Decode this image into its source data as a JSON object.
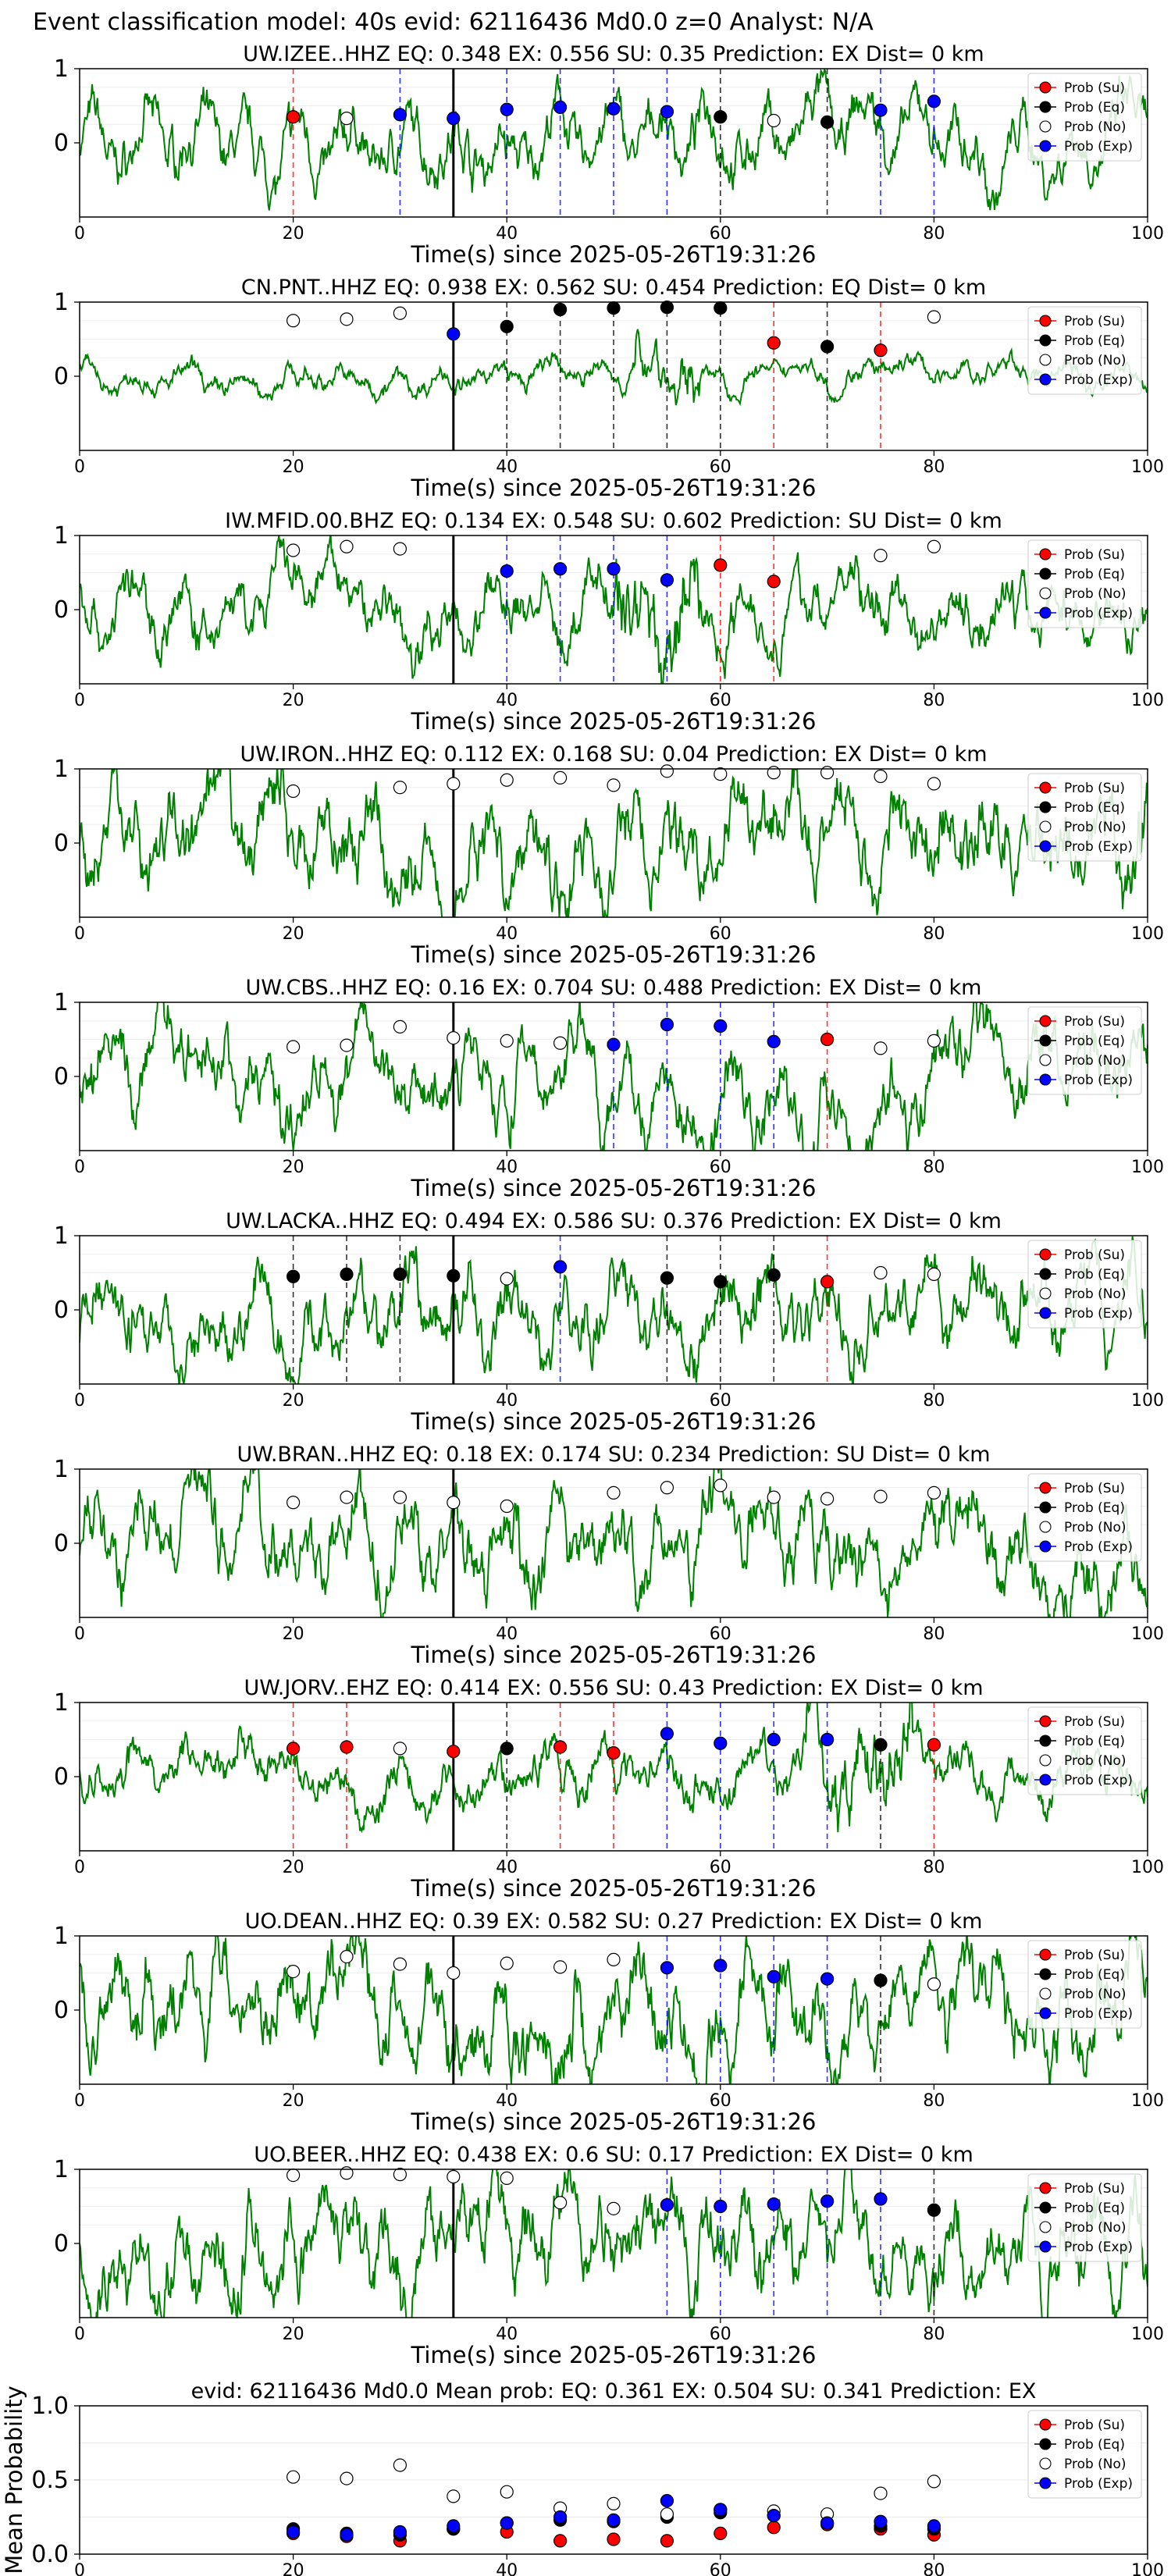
{
  "figure": {
    "suptitle": "Event classification model: 40s evid: 62116436 Md0.0 z=0 Analyst: N/A",
    "xlabel": "Time(s) since 2025-05-26T19:31:26",
    "legend_labels": [
      "Prob (Su)",
      "Prob (Eq)",
      "Prob (No)",
      "Prob (Exp)"
    ],
    "colors": {
      "su": "#ff0000",
      "eq": "#000000",
      "no": "#ffffff",
      "exp": "#0000ff",
      "waveform": "#008000"
    }
  },
  "chart_data": [
    {
      "type": "line",
      "title": "UW.IZEE..HHZ   EQ: 0.348  EX: 0.556  SU: 0.35   Prediction: EX    Dist= 0 km",
      "xlim": [
        0,
        100
      ],
      "ylim": [
        -1,
        1
      ],
      "yticks": [
        0,
        1
      ],
      "xticks": [
        0,
        20,
        40,
        60,
        80,
        100
      ],
      "pick_time": 35,
      "series": [
        {
          "name": "Prob (Su)",
          "x": [
            20
          ],
          "y": [
            0.35
          ]
        },
        {
          "name": "Prob (Eq)",
          "x": [
            60,
            70
          ],
          "y": [
            0.35,
            0.28
          ]
        },
        {
          "name": "Prob (No)",
          "x": [
            25,
            65
          ],
          "y": [
            0.33,
            0.3
          ]
        },
        {
          "name": "Prob (Exp)",
          "x": [
            30,
            35,
            40,
            45,
            50,
            55,
            75,
            80
          ],
          "y": [
            0.38,
            0.33,
            0.45,
            0.48,
            0.46,
            0.42,
            0.44,
            0.56
          ]
        }
      ],
      "vlines": [
        {
          "x": 20,
          "color": "su"
        },
        {
          "x": 30,
          "color": "exp"
        },
        {
          "x": 40,
          "color": "exp"
        },
        {
          "x": 45,
          "color": "exp"
        },
        {
          "x": 50,
          "color": "exp"
        },
        {
          "x": 55,
          "color": "exp"
        },
        {
          "x": 60,
          "color": "eq"
        },
        {
          "x": 70,
          "color": "eq"
        },
        {
          "x": 75,
          "color": "exp"
        },
        {
          "x": 80,
          "color": "exp"
        }
      ]
    },
    {
      "type": "line",
      "title": "CN.PNT..HHZ   EQ: 0.938  EX: 0.562  SU: 0.454   Prediction: EQ    Dist= 0 km",
      "xlim": [
        0,
        100
      ],
      "ylim": [
        -1,
        1
      ],
      "yticks": [
        0,
        1
      ],
      "xticks": [
        0,
        20,
        40,
        60,
        80,
        100
      ],
      "pick_time": 35,
      "series": [
        {
          "name": "Prob (Su)",
          "x": [
            65,
            75
          ],
          "y": [
            0.45,
            0.35
          ]
        },
        {
          "name": "Prob (Eq)",
          "x": [
            40,
            45,
            50,
            55,
            60,
            70
          ],
          "y": [
            0.67,
            0.9,
            0.92,
            0.93,
            0.92,
            0.4
          ]
        },
        {
          "name": "Prob (No)",
          "x": [
            20,
            25,
            30,
            80
          ],
          "y": [
            0.75,
            0.77,
            0.85,
            0.8
          ]
        },
        {
          "name": "Prob (Exp)",
          "x": [
            35
          ],
          "y": [
            0.57
          ]
        }
      ],
      "vlines": [
        {
          "x": 40,
          "color": "eq"
        },
        {
          "x": 45,
          "color": "eq"
        },
        {
          "x": 50,
          "color": "eq"
        },
        {
          "x": 55,
          "color": "eq"
        },
        {
          "x": 60,
          "color": "eq"
        },
        {
          "x": 65,
          "color": "su"
        },
        {
          "x": 70,
          "color": "eq"
        },
        {
          "x": 75,
          "color": "su"
        }
      ]
    },
    {
      "type": "line",
      "title": "IW.MFID.00.BHZ   EQ: 0.134  EX: 0.548  SU: 0.602   Prediction: SU    Dist= 0 km",
      "xlim": [
        0,
        100
      ],
      "ylim": [
        -1,
        1
      ],
      "yticks": [
        0,
        1
      ],
      "xticks": [
        0,
        20,
        40,
        60,
        80,
        100
      ],
      "pick_time": 35,
      "series": [
        {
          "name": "Prob (Su)",
          "x": [
            60,
            65
          ],
          "y": [
            0.6,
            0.38
          ]
        },
        {
          "name": "Prob (Eq)",
          "x": [],
          "y": []
        },
        {
          "name": "Prob (No)",
          "x": [
            20,
            25,
            30,
            75,
            80
          ],
          "y": [
            0.8,
            0.85,
            0.82,
            0.73,
            0.85
          ]
        },
        {
          "name": "Prob (Exp)",
          "x": [
            40,
            45,
            50,
            55
          ],
          "y": [
            0.52,
            0.55,
            0.55,
            0.4
          ]
        }
      ],
      "vlines": [
        {
          "x": 40,
          "color": "exp"
        },
        {
          "x": 45,
          "color": "exp"
        },
        {
          "x": 50,
          "color": "exp"
        },
        {
          "x": 55,
          "color": "exp"
        },
        {
          "x": 60,
          "color": "su"
        },
        {
          "x": 65,
          "color": "su"
        }
      ]
    },
    {
      "type": "line",
      "title": "UW.IRON..HHZ   EQ: 0.112  EX: 0.168  SU: 0.04   Prediction: EX    Dist= 0 km",
      "xlim": [
        0,
        100
      ],
      "ylim": [
        -1,
        1
      ],
      "yticks": [
        0,
        1
      ],
      "xticks": [
        0,
        20,
        40,
        60,
        80,
        100
      ],
      "pick_time": 35,
      "series": [
        {
          "name": "Prob (Su)",
          "x": [],
          "y": []
        },
        {
          "name": "Prob (Eq)",
          "x": [],
          "y": []
        },
        {
          "name": "Prob (No)",
          "x": [
            20,
            30,
            35,
            40,
            45,
            50,
            55,
            60,
            65,
            70,
            75,
            80
          ],
          "y": [
            0.7,
            0.75,
            0.8,
            0.85,
            0.88,
            0.78,
            0.97,
            0.93,
            0.95,
            0.95,
            0.9,
            0.8
          ]
        },
        {
          "name": "Prob (Exp)",
          "x": [],
          "y": []
        }
      ],
      "vlines": []
    },
    {
      "type": "line",
      "title": "UW.CBS..HHZ   EQ: 0.16  EX: 0.704  SU: 0.488   Prediction: EX    Dist= 0 km",
      "xlim": [
        0,
        100
      ],
      "ylim": [
        -1,
        1
      ],
      "yticks": [
        0,
        1
      ],
      "xticks": [
        0,
        20,
        40,
        60,
        80,
        100
      ],
      "pick_time": 35,
      "series": [
        {
          "name": "Prob (Su)",
          "x": [
            70
          ],
          "y": [
            0.5
          ]
        },
        {
          "name": "Prob (Eq)",
          "x": [],
          "y": []
        },
        {
          "name": "Prob (No)",
          "x": [
            20,
            25,
            30,
            35,
            40,
            45,
            75,
            80
          ],
          "y": [
            0.4,
            0.42,
            0.67,
            0.52,
            0.48,
            0.45,
            0.38,
            0.48
          ]
        },
        {
          "name": "Prob (Exp)",
          "x": [
            50,
            55,
            60,
            65
          ],
          "y": [
            0.43,
            0.7,
            0.68,
            0.47
          ]
        }
      ],
      "vlines": [
        {
          "x": 50,
          "color": "exp"
        },
        {
          "x": 55,
          "color": "exp"
        },
        {
          "x": 60,
          "color": "exp"
        },
        {
          "x": 65,
          "color": "exp"
        },
        {
          "x": 70,
          "color": "su"
        }
      ]
    },
    {
      "type": "line",
      "title": "UW.LACKA..HHZ   EQ: 0.494  EX: 0.586  SU: 0.376   Prediction: EX    Dist= 0 km",
      "xlim": [
        0,
        100
      ],
      "ylim": [
        -1,
        1
      ],
      "yticks": [
        0,
        1
      ],
      "xticks": [
        0,
        20,
        40,
        60,
        80,
        100
      ],
      "pick_time": 35,
      "series": [
        {
          "name": "Prob (Su)",
          "x": [
            70
          ],
          "y": [
            0.38
          ]
        },
        {
          "name": "Prob (Eq)",
          "x": [
            20,
            25,
            30,
            35,
            55,
            60,
            65
          ],
          "y": [
            0.45,
            0.48,
            0.48,
            0.46,
            0.43,
            0.38,
            0.47
          ]
        },
        {
          "name": "Prob (No)",
          "x": [
            40,
            75,
            80
          ],
          "y": [
            0.42,
            0.5,
            0.48
          ]
        },
        {
          "name": "Prob (Exp)",
          "x": [
            45
          ],
          "y": [
            0.58
          ]
        }
      ],
      "vlines": [
        {
          "x": 20,
          "color": "eq"
        },
        {
          "x": 25,
          "color": "eq"
        },
        {
          "x": 30,
          "color": "eq"
        },
        {
          "x": 45,
          "color": "exp"
        },
        {
          "x": 55,
          "color": "eq"
        },
        {
          "x": 60,
          "color": "eq"
        },
        {
          "x": 65,
          "color": "eq"
        },
        {
          "x": 70,
          "color": "su"
        }
      ]
    },
    {
      "type": "line",
      "title": "UW.BRAN..HHZ   EQ: 0.18  EX: 0.174  SU: 0.234   Prediction: SU    Dist= 0 km",
      "xlim": [
        0,
        100
      ],
      "ylim": [
        -1,
        1
      ],
      "yticks": [
        0,
        1
      ],
      "xticks": [
        0,
        20,
        40,
        60,
        80,
        100
      ],
      "pick_time": 35,
      "series": [
        {
          "name": "Prob (Su)",
          "x": [],
          "y": []
        },
        {
          "name": "Prob (Eq)",
          "x": [],
          "y": []
        },
        {
          "name": "Prob (No)",
          "x": [
            20,
            25,
            30,
            35,
            40,
            50,
            55,
            60,
            65,
            70,
            75,
            80
          ],
          "y": [
            0.55,
            0.62,
            0.62,
            0.55,
            0.5,
            0.68,
            0.75,
            0.78,
            0.62,
            0.6,
            0.63,
            0.68
          ]
        },
        {
          "name": "Prob (Exp)",
          "x": [],
          "y": []
        }
      ],
      "vlines": []
    },
    {
      "type": "line",
      "title": "UW.JORV..EHZ   EQ: 0.414  EX: 0.556  SU: 0.43   Prediction: EX    Dist= 0 km",
      "xlim": [
        0,
        100
      ],
      "ylim": [
        -1,
        1
      ],
      "yticks": [
        0,
        1
      ],
      "xticks": [
        0,
        20,
        40,
        60,
        80,
        100
      ],
      "pick_time": 35,
      "series": [
        {
          "name": "Prob (Su)",
          "x": [
            20,
            25,
            35,
            45,
            50,
            80
          ],
          "y": [
            0.38,
            0.4,
            0.34,
            0.4,
            0.32,
            0.43
          ]
        },
        {
          "name": "Prob (Eq)",
          "x": [
            40,
            75
          ],
          "y": [
            0.38,
            0.43
          ]
        },
        {
          "name": "Prob (No)",
          "x": [
            30
          ],
          "y": [
            0.38
          ]
        },
        {
          "name": "Prob (Exp)",
          "x": [
            55,
            60,
            65,
            70
          ],
          "y": [
            0.58,
            0.45,
            0.5,
            0.5
          ]
        }
      ],
      "vlines": [
        {
          "x": 20,
          "color": "su"
        },
        {
          "x": 25,
          "color": "su"
        },
        {
          "x": 40,
          "color": "eq"
        },
        {
          "x": 45,
          "color": "su"
        },
        {
          "x": 50,
          "color": "su"
        },
        {
          "x": 55,
          "color": "exp"
        },
        {
          "x": 60,
          "color": "exp"
        },
        {
          "x": 65,
          "color": "exp"
        },
        {
          "x": 70,
          "color": "exp"
        },
        {
          "x": 75,
          "color": "eq"
        },
        {
          "x": 80,
          "color": "su"
        }
      ]
    },
    {
      "type": "line",
      "title": "UO.DEAN..HHZ   EQ: 0.39  EX: 0.582  SU: 0.27   Prediction: EX    Dist= 0 km",
      "xlim": [
        0,
        100
      ],
      "ylim": [
        -1,
        1
      ],
      "yticks": [
        0,
        1
      ],
      "xticks": [
        0,
        20,
        40,
        60,
        80,
        100
      ],
      "pick_time": 35,
      "series": [
        {
          "name": "Prob (Su)",
          "x": [],
          "y": []
        },
        {
          "name": "Prob (Eq)",
          "x": [
            75
          ],
          "y": [
            0.4
          ]
        },
        {
          "name": "Prob (No)",
          "x": [
            20,
            25,
            30,
            35,
            40,
            45,
            50,
            80
          ],
          "y": [
            0.52,
            0.72,
            0.62,
            0.5,
            0.63,
            0.58,
            0.68,
            0.35
          ]
        },
        {
          "name": "Prob (Exp)",
          "x": [
            55,
            60,
            65,
            70
          ],
          "y": [
            0.57,
            0.6,
            0.45,
            0.42
          ]
        }
      ],
      "vlines": [
        {
          "x": 55,
          "color": "exp"
        },
        {
          "x": 60,
          "color": "exp"
        },
        {
          "x": 65,
          "color": "exp"
        },
        {
          "x": 70,
          "color": "exp"
        },
        {
          "x": 75,
          "color": "eq"
        }
      ]
    },
    {
      "type": "line",
      "title": "UO.BEER..HHZ   EQ: 0.438  EX: 0.6  SU: 0.17   Prediction: EX    Dist= 0 km",
      "xlim": [
        0,
        100
      ],
      "ylim": [
        -1,
        1
      ],
      "yticks": [
        0,
        1
      ],
      "xticks": [
        0,
        20,
        40,
        60,
        80,
        100
      ],
      "pick_time": 35,
      "series": [
        {
          "name": "Prob (Su)",
          "x": [],
          "y": []
        },
        {
          "name": "Prob (Eq)",
          "x": [
            80
          ],
          "y": [
            0.45
          ]
        },
        {
          "name": "Prob (No)",
          "x": [
            20,
            25,
            30,
            35,
            40,
            45,
            50
          ],
          "y": [
            0.92,
            0.95,
            0.93,
            0.9,
            0.88,
            0.55,
            0.47
          ]
        },
        {
          "name": "Prob (Exp)",
          "x": [
            55,
            60,
            65,
            70,
            75
          ],
          "y": [
            0.52,
            0.5,
            0.53,
            0.57,
            0.6
          ]
        }
      ],
      "vlines": [
        {
          "x": 55,
          "color": "exp"
        },
        {
          "x": 60,
          "color": "exp"
        },
        {
          "x": 65,
          "color": "exp"
        },
        {
          "x": 70,
          "color": "exp"
        },
        {
          "x": 75,
          "color": "exp"
        },
        {
          "x": 80,
          "color": "eq"
        }
      ]
    },
    {
      "type": "scatter",
      "title": "evid: 62116436  Md0.0   Mean prob:   EQ: 0.361  EX: 0.504  SU: 0.341   Prediction: EX",
      "ylabel": "Mean Probability",
      "xlim": [
        0,
        100
      ],
      "ylim": [
        0,
        1
      ],
      "yticks": [
        0.0,
        0.5,
        1.0
      ],
      "ytick_labels": [
        "0.0",
        "0.5",
        "1.0"
      ],
      "xticks": [
        0,
        20,
        40,
        60,
        80,
        100
      ],
      "series": [
        {
          "name": "Prob (Su)",
          "x": [
            20,
            25,
            30,
            35,
            40,
            45,
            50,
            55,
            60,
            65,
            70,
            75,
            80
          ],
          "y": [
            0.14,
            0.12,
            0.09,
            0.17,
            0.15,
            0.09,
            0.1,
            0.09,
            0.14,
            0.18,
            0.2,
            0.17,
            0.13
          ]
        },
        {
          "name": "Prob (Eq)",
          "x": [
            20,
            25,
            30,
            35,
            40,
            45,
            50,
            55,
            60,
            65,
            70,
            75,
            80
          ],
          "y": [
            0.17,
            0.14,
            0.13,
            0.17,
            0.21,
            0.23,
            0.22,
            0.25,
            0.28,
            0.26,
            0.21,
            0.19,
            0.17
          ]
        },
        {
          "name": "Prob (No)",
          "x": [
            20,
            25,
            30,
            35,
            40,
            45,
            50,
            55,
            60,
            65,
            70,
            75,
            80
          ],
          "y": [
            0.52,
            0.51,
            0.6,
            0.39,
            0.42,
            0.31,
            0.34,
            0.27,
            0.3,
            0.29,
            0.27,
            0.41,
            0.49
          ]
        },
        {
          "name": "Prob (Exp)",
          "x": [
            20,
            25,
            30,
            35,
            40,
            45,
            50,
            55,
            60,
            65,
            70,
            75,
            80
          ],
          "y": [
            0.15,
            0.13,
            0.15,
            0.19,
            0.21,
            0.25,
            0.23,
            0.36,
            0.3,
            0.26,
            0.21,
            0.22,
            0.19
          ]
        }
      ]
    }
  ]
}
